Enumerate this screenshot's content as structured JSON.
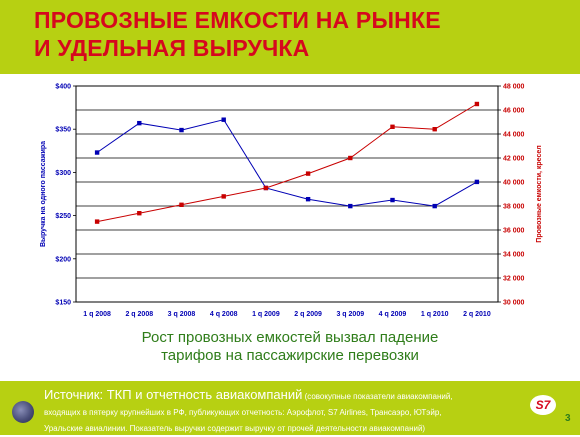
{
  "title": {
    "line1": "ПРОВОЗНЫЕ ЕМКОСТИ НА РЫНКЕ",
    "line2": "И УДЕЛЬНАЯ ВЫРУЧКА"
  },
  "chart_data": {
    "type": "line",
    "categories": [
      "1 q 2008",
      "2 q 2008",
      "3 q 2008",
      "4 q 2008",
      "1 q 2009",
      "2 q 2009",
      "3 q 2009",
      "4 q 2009",
      "1 q 2010",
      "2 q 2010"
    ],
    "series": [
      {
        "axis": "left",
        "color": "#0000b4",
        "values": [
          323,
          357,
          349,
          361,
          282,
          269,
          261,
          268,
          261,
          289
        ]
      },
      {
        "axis": "right",
        "color": "#c80000",
        "values": [
          36700,
          37400,
          38100,
          38800,
          39500,
          40700,
          42000,
          44600,
          44400,
          46500
        ]
      }
    ],
    "y_left": {
      "label": "Выручка на одного пассажира",
      "min": 150,
      "max": 400,
      "ticks": [
        150,
        200,
        250,
        300,
        350,
        400
      ],
      "tick_labels": [
        "$150",
        "$200",
        "$250",
        "$300",
        "$350",
        "$400"
      ],
      "color": "#0000b4"
    },
    "y_right": {
      "label": "Провозные емкости, кресел",
      "min": 30000,
      "max": 48000,
      "ticks": [
        30000,
        32000,
        34000,
        36000,
        38000,
        40000,
        42000,
        44000,
        46000,
        48000
      ],
      "tick_labels": [
        "30 000",
        "32 000",
        "34 000",
        "36 000",
        "38 000",
        "40 000",
        "42 000",
        "44 000",
        "46 000",
        "48 000"
      ],
      "color": "#c80000"
    },
    "grid": "horizontal",
    "legend": "none"
  },
  "caption": {
    "line1": "Рост провозных емкостей вызвал падение",
    "line2": "тарифов на пассажирские перевозки"
  },
  "footer": {
    "source_label": "Источник:",
    "source_main": " ТКП и отчетность авиакомпаний",
    "source_note": " (совокупные показатели авиакомпаний,",
    "line2": "входящих в пятерку крупнейших в РФ, публикующих отчетность: Аэрофлот, S7 Airlines, Трансаэро, ЮТэйр,",
    "line3": "Уральские авиалинии. Показатель выручки содержит выручку от прочей деятельности авиакомпаний)",
    "logo_text": "S7",
    "page_number": "3"
  },
  "colors": {
    "header_bg": "#b7d012",
    "title": "#d6081e",
    "caption": "#2f7d1a"
  }
}
